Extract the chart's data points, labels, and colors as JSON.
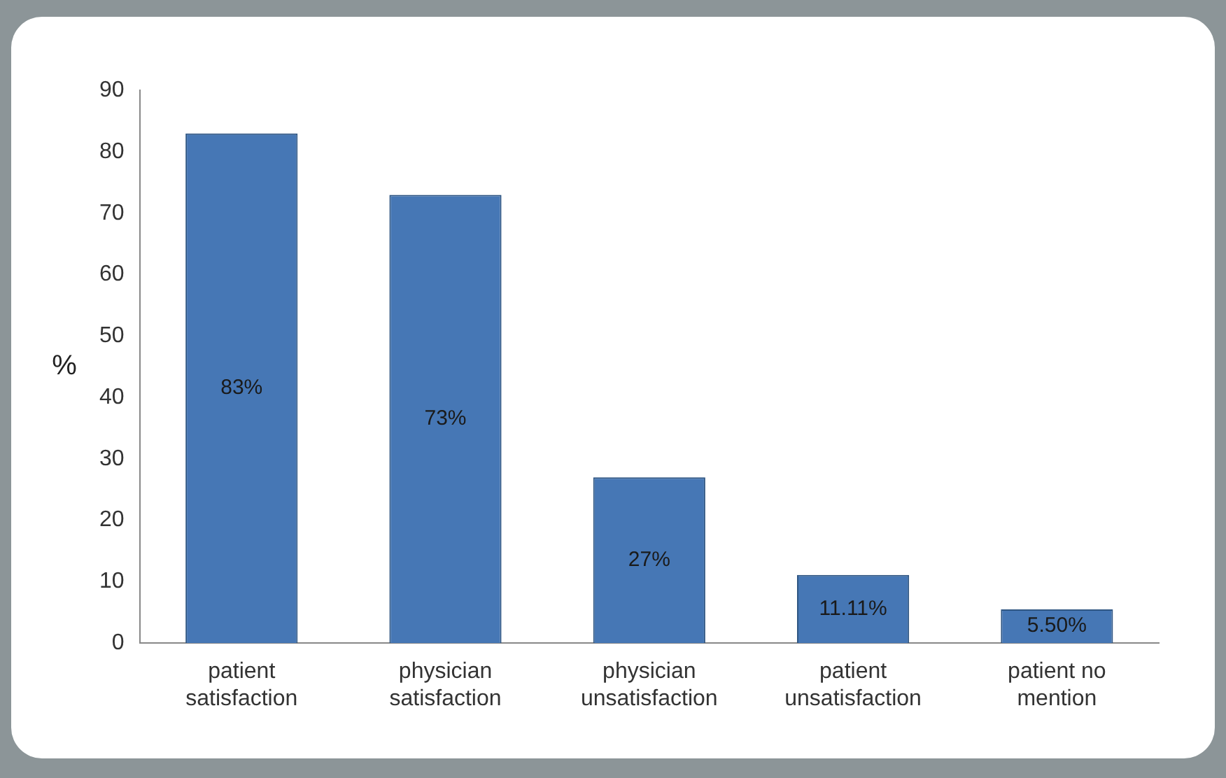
{
  "chart_data": {
    "type": "bar",
    "ylabel": "%",
    "categories": [
      "patient\nsatisfaction",
      "physician\nsatisfaction",
      "physician\nunsatisfaction",
      "patient\nunsatisfaction",
      "patient no\nmention"
    ],
    "values": [
      83,
      73,
      27,
      11.11,
      5.5
    ],
    "value_labels": [
      "83%",
      "73%",
      "27%",
      "11.11%",
      "5.50%"
    ],
    "color": "#4677b5",
    "ylim": [
      0,
      90
    ],
    "yticks": [
      0,
      10,
      20,
      30,
      40,
      50,
      60,
      70,
      80,
      90
    ],
    "grid": false,
    "legend": false
  }
}
